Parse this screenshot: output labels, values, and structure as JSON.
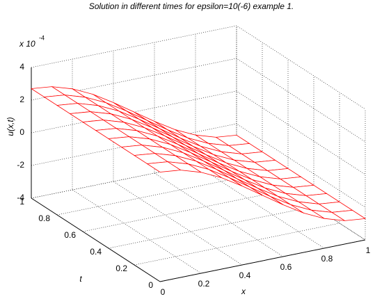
{
  "chart_data": {
    "type": "surface",
    "title": "Solution in different times for epsilon=10(-6) example 1.",
    "xlabel": "x",
    "ylabel": "t",
    "zlabel": "u(x,t)",
    "z_multiplier": "x 10",
    "z_exponent": "-4",
    "x": [
      0,
      0.1,
      0.2,
      0.3,
      0.4,
      0.5,
      0.6,
      0.7,
      0.8,
      0.9,
      1
    ],
    "y": [
      0,
      0.1,
      0.2,
      0.3,
      0.4,
      0.5,
      0.6,
      0.7,
      0.8,
      0.9,
      1
    ],
    "z": [
      [
        2.7,
        2.57,
        2.18,
        1.59,
        0.83,
        0,
        -0.83,
        -1.59,
        -2.18,
        -2.57,
        -2.7
      ],
      [
        2.7,
        2.57,
        2.18,
        1.59,
        0.83,
        0,
        -0.83,
        -1.59,
        -2.18,
        -2.57,
        -2.7
      ],
      [
        2.7,
        2.57,
        2.18,
        1.59,
        0.83,
        0,
        -0.83,
        -1.59,
        -2.18,
        -2.57,
        -2.7
      ],
      [
        2.7,
        2.57,
        2.18,
        1.59,
        0.83,
        0,
        -0.83,
        -1.59,
        -2.18,
        -2.57,
        -2.7
      ],
      [
        2.7,
        2.57,
        2.18,
        1.59,
        0.83,
        0,
        -0.83,
        -1.59,
        -2.18,
        -2.57,
        -2.7
      ],
      [
        2.7,
        2.57,
        2.18,
        1.59,
        0.83,
        0,
        -0.83,
        -1.59,
        -2.18,
        -2.57,
        -2.7
      ],
      [
        2.7,
        2.57,
        2.18,
        1.59,
        0.83,
        0,
        -0.83,
        -1.59,
        -2.18,
        -2.57,
        -2.7
      ],
      [
        2.7,
        2.57,
        2.18,
        1.59,
        0.83,
        0,
        -0.83,
        -1.59,
        -2.18,
        -2.57,
        -2.7
      ],
      [
        2.7,
        2.57,
        2.18,
        1.59,
        0.83,
        0,
        -0.83,
        -1.59,
        -2.18,
        -2.57,
        -2.7
      ],
      [
        2.7,
        2.57,
        2.18,
        1.59,
        0.83,
        0,
        -0.83,
        -1.59,
        -2.18,
        -2.57,
        -2.7
      ],
      [
        2.7,
        2.57,
        2.18,
        1.59,
        0.83,
        0,
        -0.83,
        -1.59,
        -2.18,
        -2.57,
        -2.7
      ]
    ],
    "xlim": [
      0,
      1
    ],
    "ylim": [
      0,
      1
    ],
    "zlim": [
      -4,
      4
    ],
    "xticks": [
      0,
      0.2,
      0.4,
      0.6,
      0.8,
      1
    ],
    "yticks": [
      0,
      0.2,
      0.4,
      0.6,
      0.8,
      1
    ],
    "zticks": [
      -4,
      -2,
      0,
      2,
      4
    ],
    "color": "#ff0000",
    "grid": true
  }
}
